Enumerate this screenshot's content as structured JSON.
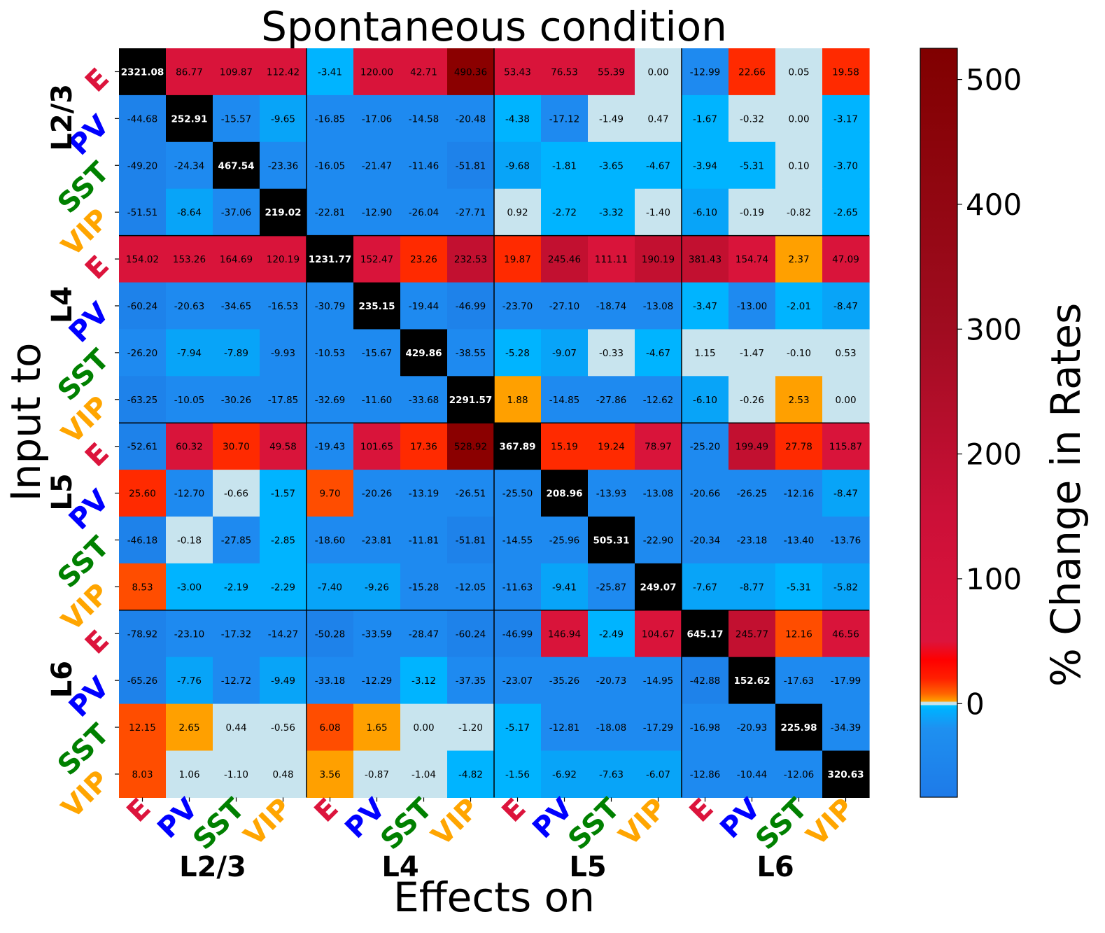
{
  "chart_data": {
    "type": "heatmap",
    "title": "Spontaneous condition",
    "xlabel": "Effects on",
    "ylabel": "Input to",
    "colorbar_label": "% Change in Rates",
    "colorbar_range": [
      -75,
      525
    ],
    "colorbar_ticks": [
      0,
      100,
      200,
      300,
      400,
      500
    ],
    "layers": [
      "L2/3",
      "L4",
      "L5",
      "L6"
    ],
    "cell_types": [
      "E",
      "PV",
      "SST",
      "VIP"
    ],
    "cell_type_colors": {
      "E": "#dc143c",
      "PV": "#0000ff",
      "SST": "#008000",
      "VIP": "#ffa500"
    },
    "values": [
      [
        2321.08,
        86.77,
        109.87,
        112.42,
        -3.41,
        120.0,
        42.71,
        490.36,
        53.43,
        76.53,
        55.39,
        0.0,
        -12.99,
        22.66,
        0.05,
        19.58
      ],
      [
        -44.68,
        252.91,
        -15.57,
        -9.65,
        -16.85,
        -17.06,
        -14.58,
        -20.48,
        -4.38,
        -17.12,
        -1.49,
        0.47,
        -1.67,
        -0.32,
        0.0,
        -3.17
      ],
      [
        -49.2,
        -24.34,
        467.54,
        -23.36,
        -16.05,
        -21.47,
        -11.46,
        -51.81,
        -9.68,
        -1.81,
        -3.65,
        -4.67,
        -3.94,
        -5.31,
        0.1,
        -3.7
      ],
      [
        -51.51,
        -8.64,
        -37.06,
        219.02,
        -22.81,
        -12.9,
        -26.04,
        -27.71,
        0.92,
        -2.72,
        -3.32,
        -1.4,
        -6.1,
        -0.19,
        -0.82,
        -2.65
      ],
      [
        154.02,
        153.26,
        164.69,
        120.19,
        1231.77,
        152.47,
        23.26,
        232.53,
        19.87,
        245.46,
        111.11,
        190.19,
        381.43,
        154.74,
        2.37,
        47.09
      ],
      [
        -60.24,
        -20.63,
        -34.65,
        -16.53,
        -30.79,
        235.15,
        -19.44,
        -46.99,
        -23.7,
        -27.1,
        -18.74,
        -13.08,
        -3.47,
        -13.0,
        -2.01,
        -8.47
      ],
      [
        -26.2,
        -7.94,
        -7.89,
        -9.93,
        -10.53,
        -15.67,
        429.86,
        -38.55,
        -5.28,
        -9.07,
        -0.33,
        -4.67,
        1.15,
        -1.47,
        -0.1,
        0.53
      ],
      [
        -63.25,
        -10.05,
        -30.26,
        -17.85,
        -32.69,
        -11.6,
        -33.68,
        2291.57,
        1.88,
        -14.85,
        -27.86,
        -12.62,
        -6.1,
        -0.26,
        2.53,
        0.0
      ],
      [
        -52.61,
        60.32,
        30.7,
        49.58,
        -19.43,
        101.65,
        17.36,
        528.92,
        367.89,
        15.19,
        19.24,
        78.97,
        -25.2,
        199.49,
        27.78,
        115.87
      ],
      [
        25.6,
        -12.7,
        -0.66,
        -1.57,
        9.7,
        -20.26,
        -13.19,
        -26.51,
        -25.5,
        208.96,
        -13.93,
        -13.08,
        -20.66,
        -26.25,
        -12.16,
        -8.47
      ],
      [
        -46.18,
        -0.18,
        -27.85,
        -2.85,
        -18.6,
        -23.81,
        -11.81,
        -51.81,
        -14.55,
        -25.96,
        505.31,
        -22.9,
        -20.34,
        -23.18,
        -13.4,
        -13.76
      ],
      [
        8.53,
        -3.0,
        -2.19,
        -2.29,
        -7.4,
        -9.26,
        -15.28,
        -12.05,
        -11.63,
        -9.41,
        -25.87,
        249.07,
        -7.67,
        -8.77,
        -5.31,
        -5.82
      ],
      [
        -78.92,
        -23.1,
        -17.32,
        -14.27,
        -50.28,
        -33.59,
        -28.47,
        -60.24,
        -46.99,
        146.94,
        -2.49,
        104.67,
        645.17,
        245.77,
        12.16,
        46.56
      ],
      [
        -65.26,
        -7.76,
        -12.72,
        -9.49,
        -33.18,
        -12.29,
        -3.12,
        -37.35,
        -23.07,
        -35.26,
        -20.73,
        -14.95,
        -42.88,
        152.62,
        -17.63,
        -17.99
      ],
      [
        12.15,
        2.65,
        0.44,
        -0.56,
        6.08,
        1.65,
        0.0,
        -1.2,
        -5.17,
        -12.81,
        -18.08,
        -17.29,
        -16.98,
        -20.93,
        225.98,
        -34.39
      ],
      [
        8.03,
        1.06,
        -1.1,
        0.48,
        3.56,
        -0.87,
        -1.04,
        -4.82,
        -1.56,
        -6.92,
        -7.63,
        -6.07,
        -12.86,
        -10.44,
        -12.06,
        320.63
      ]
    ]
  }
}
